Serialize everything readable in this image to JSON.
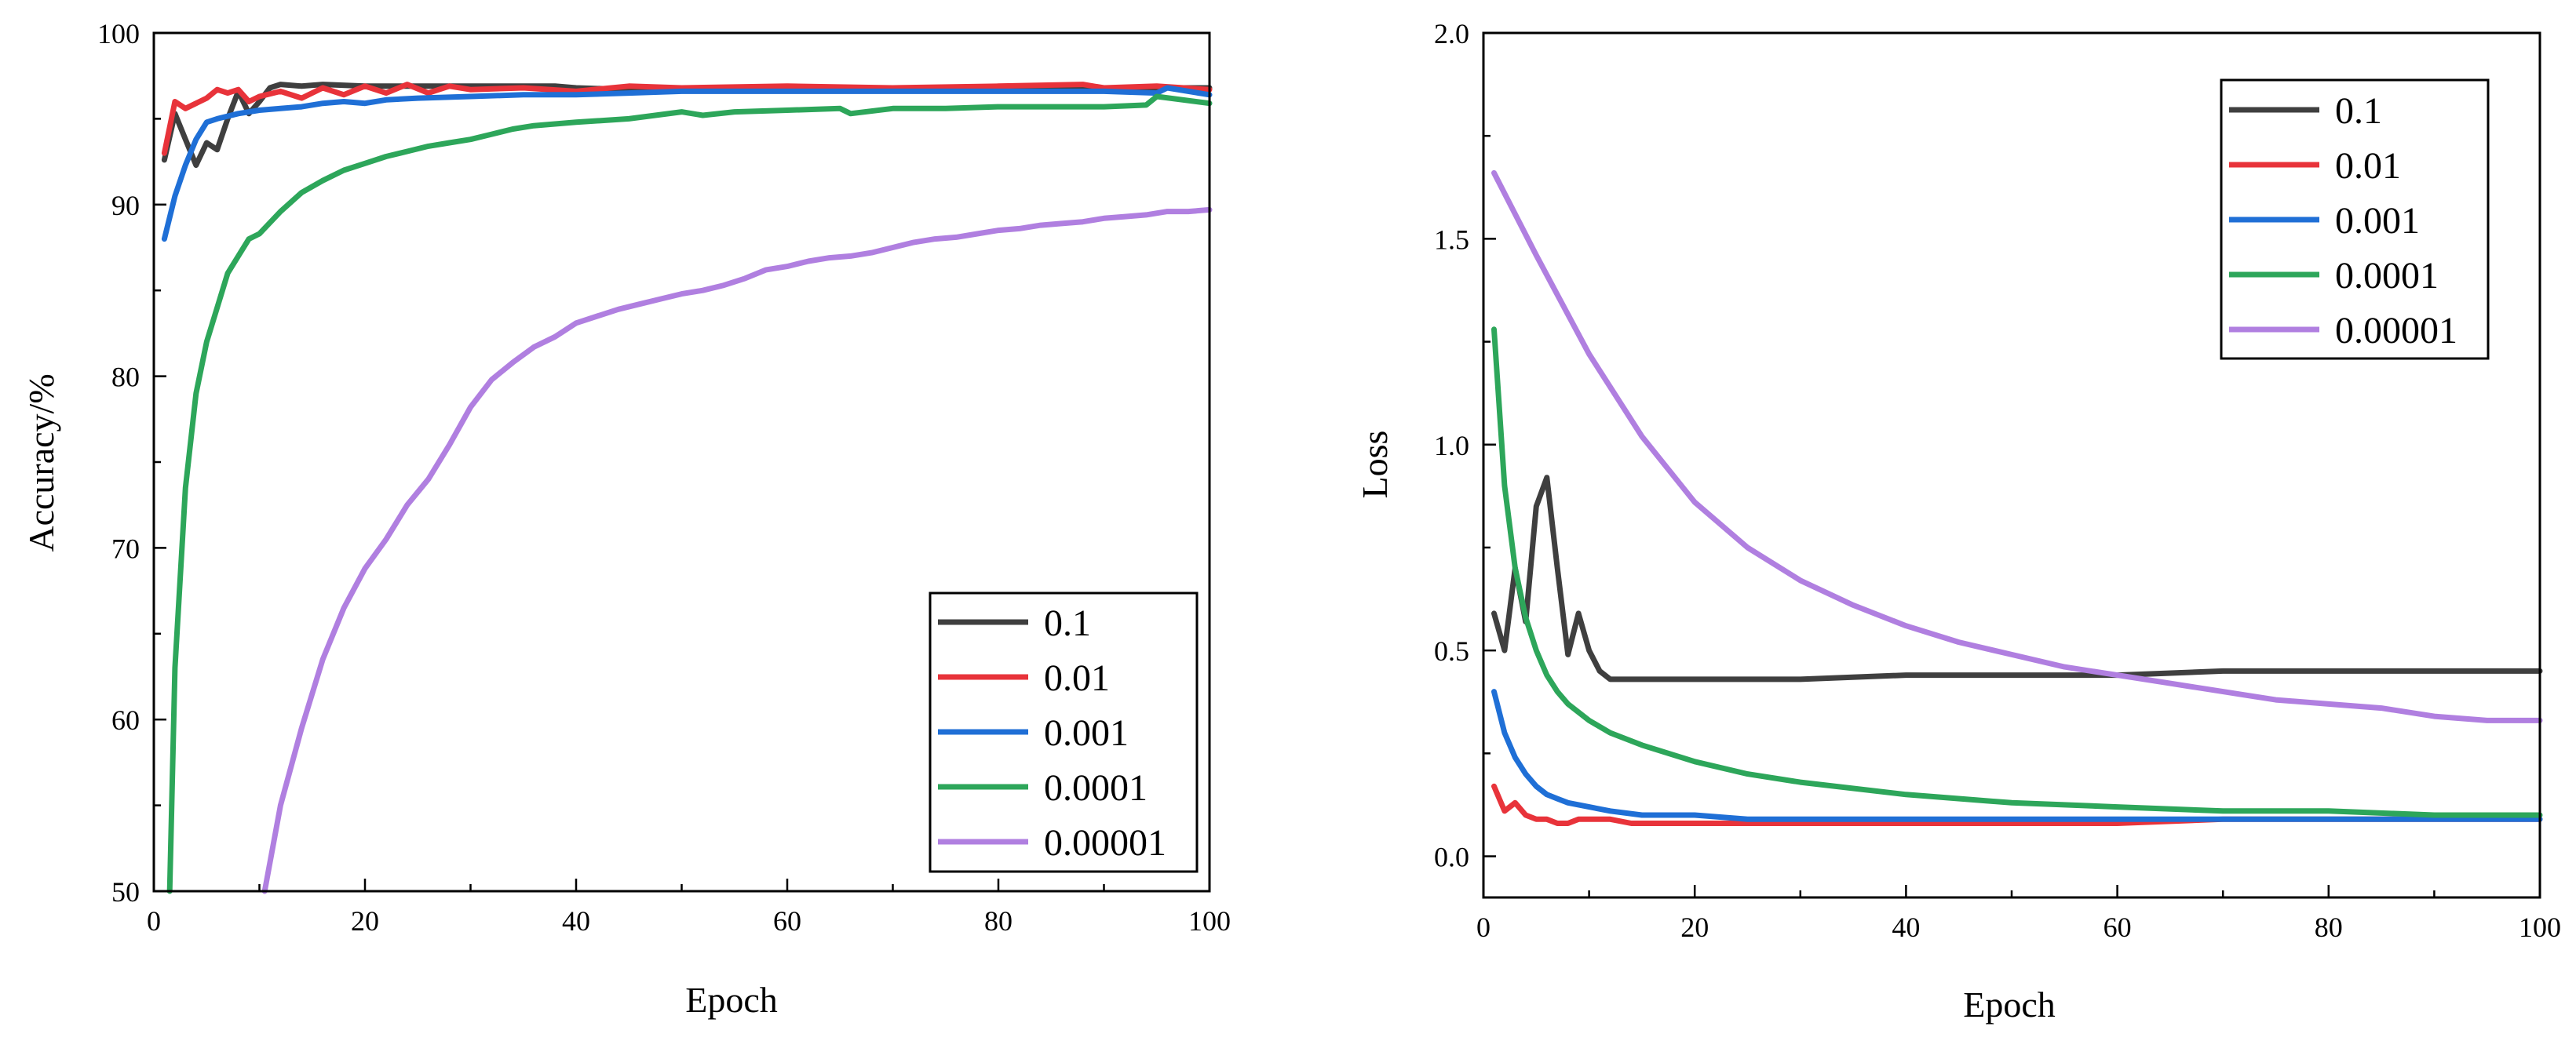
{
  "chart_data": [
    {
      "type": "line",
      "title": "",
      "xlabel": "Epoch",
      "ylabel": "Accuracy/%",
      "xlim": [
        0,
        100
      ],
      "ylim": [
        50,
        100
      ],
      "xticks": [
        0,
        20,
        40,
        60,
        80,
        100
      ],
      "yticks": [
        50,
        60,
        70,
        80,
        90,
        100
      ],
      "x_minor_step": 10,
      "y_minor_step": 5,
      "legend_position": "bottom-right",
      "series": [
        {
          "name": "0.1",
          "color": "#3f3f3f",
          "x": [
            1,
            2,
            3,
            4,
            5,
            6,
            7,
            8,
            9,
            10,
            11,
            12,
            14,
            16,
            20,
            25,
            30,
            35,
            38,
            40,
            45,
            50,
            60,
            70,
            80,
            90,
            100
          ],
          "values": [
            92.6,
            95.3,
            93.8,
            92.3,
            93.6,
            93.2,
            95.0,
            96.6,
            95.3,
            96.0,
            96.8,
            97.0,
            96.9,
            97.0,
            96.9,
            96.9,
            96.9,
            96.9,
            96.9,
            96.8,
            96.7,
            96.8,
            96.8,
            96.8,
            96.8,
            96.8,
            96.8
          ]
        },
        {
          "name": "0.01",
          "color": "#e8333a",
          "x": [
            1,
            2,
            3,
            4,
            5,
            6,
            7,
            8,
            9,
            10,
            12,
            14,
            16,
            18,
            20,
            22,
            24,
            26,
            28,
            30,
            35,
            40,
            45,
            50,
            60,
            70,
            80,
            88,
            90,
            95,
            100
          ],
          "values": [
            93.0,
            96.0,
            95.6,
            95.9,
            96.2,
            96.7,
            96.5,
            96.7,
            96.0,
            96.3,
            96.6,
            96.2,
            96.8,
            96.4,
            96.9,
            96.5,
            97.0,
            96.5,
            96.9,
            96.7,
            96.8,
            96.6,
            96.9,
            96.8,
            96.9,
            96.8,
            96.9,
            97.0,
            96.8,
            96.9,
            96.7
          ]
        },
        {
          "name": "0.001",
          "color": "#1f6fd6",
          "x": [
            1,
            2,
            3,
            4,
            5,
            6,
            8,
            10,
            12,
            14,
            16,
            18,
            20,
            22,
            25,
            30,
            35,
            40,
            45,
            50,
            55,
            60,
            70,
            80,
            90,
            95,
            96,
            100
          ],
          "values": [
            88.0,
            90.5,
            92.3,
            93.8,
            94.8,
            95.0,
            95.3,
            95.5,
            95.6,
            95.7,
            95.9,
            96.0,
            95.9,
            96.1,
            96.2,
            96.3,
            96.4,
            96.4,
            96.5,
            96.6,
            96.6,
            96.6,
            96.6,
            96.6,
            96.6,
            96.5,
            96.8,
            96.4
          ]
        },
        {
          "name": "0.0001",
          "color": "#2da65a",
          "x": [
            1.5,
            2,
            3,
            4,
            5,
            6,
            7,
            8,
            9,
            10,
            12,
            14,
            16,
            18,
            20,
            22,
            24,
            26,
            28,
            30,
            32,
            34,
            36,
            38,
            40,
            45,
            50,
            52,
            55,
            60,
            65,
            66,
            70,
            75,
            80,
            85,
            90,
            94,
            95,
            100
          ],
          "values": [
            50.0,
            63.0,
            73.5,
            79.0,
            82.0,
            84.0,
            86.0,
            87.0,
            88.0,
            88.3,
            89.6,
            90.7,
            91.4,
            92.0,
            92.4,
            92.8,
            93.1,
            93.4,
            93.6,
            93.8,
            94.1,
            94.4,
            94.6,
            94.7,
            94.8,
            95.0,
            95.4,
            95.2,
            95.4,
            95.5,
            95.6,
            95.3,
            95.6,
            95.6,
            95.7,
            95.7,
            95.7,
            95.8,
            96.3,
            95.9
          ]
        },
        {
          "name": "0.00001",
          "color": "#b07fe0",
          "x": [
            10.5,
            12,
            14,
            16,
            18,
            20,
            22,
            24,
            26,
            28,
            30,
            32,
            34,
            36,
            38,
            40,
            42,
            44,
            46,
            48,
            50,
            52,
            54,
            56,
            58,
            60,
            62,
            64,
            66,
            68,
            70,
            72,
            74,
            76,
            78,
            80,
            82,
            84,
            86,
            88,
            90,
            92,
            94,
            96,
            98,
            100
          ],
          "values": [
            50.0,
            55.0,
            59.5,
            63.5,
            66.5,
            68.8,
            70.5,
            72.5,
            74.0,
            76.0,
            78.2,
            79.8,
            80.8,
            81.7,
            82.3,
            83.1,
            83.5,
            83.9,
            84.2,
            84.5,
            84.8,
            85.0,
            85.3,
            85.7,
            86.2,
            86.4,
            86.7,
            86.9,
            87.0,
            87.2,
            87.5,
            87.8,
            88.0,
            88.1,
            88.3,
            88.5,
            88.6,
            88.8,
            88.9,
            89.0,
            89.2,
            89.3,
            89.4,
            89.6,
            89.6,
            89.7
          ]
        }
      ]
    },
    {
      "type": "line",
      "title": "",
      "xlabel": "Epoch",
      "ylabel": "Loss",
      "xlim": [
        0,
        100
      ],
      "ylim": [
        -0.1,
        2.0
      ],
      "xticks": [
        0,
        20,
        40,
        60,
        80,
        100
      ],
      "yticks": [
        0.0,
        0.5,
        1.0,
        1.5,
        2.0
      ],
      "ytick_labels": [
        "0.0",
        "0.5",
        "1.0",
        "1.5",
        "2.0"
      ],
      "x_minor_step": 10,
      "y_minor_step": 0.25,
      "legend_position": "top-right",
      "series": [
        {
          "name": "0.1",
          "color": "#3f3f3f",
          "x": [
            1,
            2,
            3,
            4,
            5,
            6,
            7,
            8,
            9,
            10,
            11,
            12,
            13,
            15,
            20,
            30,
            40,
            50,
            60,
            70,
            80,
            90,
            100
          ],
          "values": [
            0.59,
            0.5,
            0.7,
            0.57,
            0.85,
            0.92,
            0.7,
            0.49,
            0.59,
            0.5,
            0.45,
            0.43,
            0.43,
            0.43,
            0.43,
            0.43,
            0.44,
            0.44,
            0.44,
            0.45,
            0.45,
            0.45,
            0.45
          ]
        },
        {
          "name": "0.01",
          "color": "#e8333a",
          "x": [
            1,
            2,
            3,
            4,
            5,
            6,
            7,
            8,
            9,
            10,
            12,
            14,
            16,
            20,
            25,
            30,
            40,
            50,
            60,
            70,
            80,
            90,
            100
          ],
          "values": [
            0.17,
            0.11,
            0.13,
            0.1,
            0.09,
            0.09,
            0.08,
            0.08,
            0.09,
            0.09,
            0.09,
            0.08,
            0.08,
            0.08,
            0.08,
            0.08,
            0.08,
            0.08,
            0.08,
            0.09,
            0.09,
            0.09,
            0.09
          ]
        },
        {
          "name": "0.001",
          "color": "#1f6fd6",
          "x": [
            1,
            2,
            3,
            4,
            5,
            6,
            7,
            8,
            10,
            12,
            15,
            20,
            25,
            30,
            40,
            50,
            60,
            70,
            80,
            90,
            100
          ],
          "values": [
            0.4,
            0.3,
            0.24,
            0.2,
            0.17,
            0.15,
            0.14,
            0.13,
            0.12,
            0.11,
            0.1,
            0.1,
            0.09,
            0.09,
            0.09,
            0.09,
            0.09,
            0.09,
            0.09,
            0.09,
            0.09
          ]
        },
        {
          "name": "0.0001",
          "color": "#2da65a",
          "x": [
            1,
            2,
            3,
            4,
            5,
            6,
            7,
            8,
            10,
            12,
            15,
            20,
            25,
            30,
            40,
            50,
            60,
            70,
            80,
            90,
            100
          ],
          "values": [
            1.28,
            0.9,
            0.7,
            0.58,
            0.5,
            0.44,
            0.4,
            0.37,
            0.33,
            0.3,
            0.27,
            0.23,
            0.2,
            0.18,
            0.15,
            0.13,
            0.12,
            0.11,
            0.11,
            0.1,
            0.1
          ]
        },
        {
          "name": "0.00001",
          "color": "#b07fe0",
          "x": [
            1,
            5,
            10,
            15,
            20,
            25,
            30,
            35,
            40,
            45,
            50,
            55,
            60,
            65,
            70,
            75,
            80,
            85,
            90,
            95,
            100
          ],
          "values": [
            1.66,
            1.46,
            1.22,
            1.02,
            0.86,
            0.75,
            0.67,
            0.61,
            0.56,
            0.52,
            0.49,
            0.46,
            0.44,
            0.42,
            0.4,
            0.38,
            0.37,
            0.36,
            0.34,
            0.33,
            0.33
          ]
        }
      ]
    }
  ]
}
